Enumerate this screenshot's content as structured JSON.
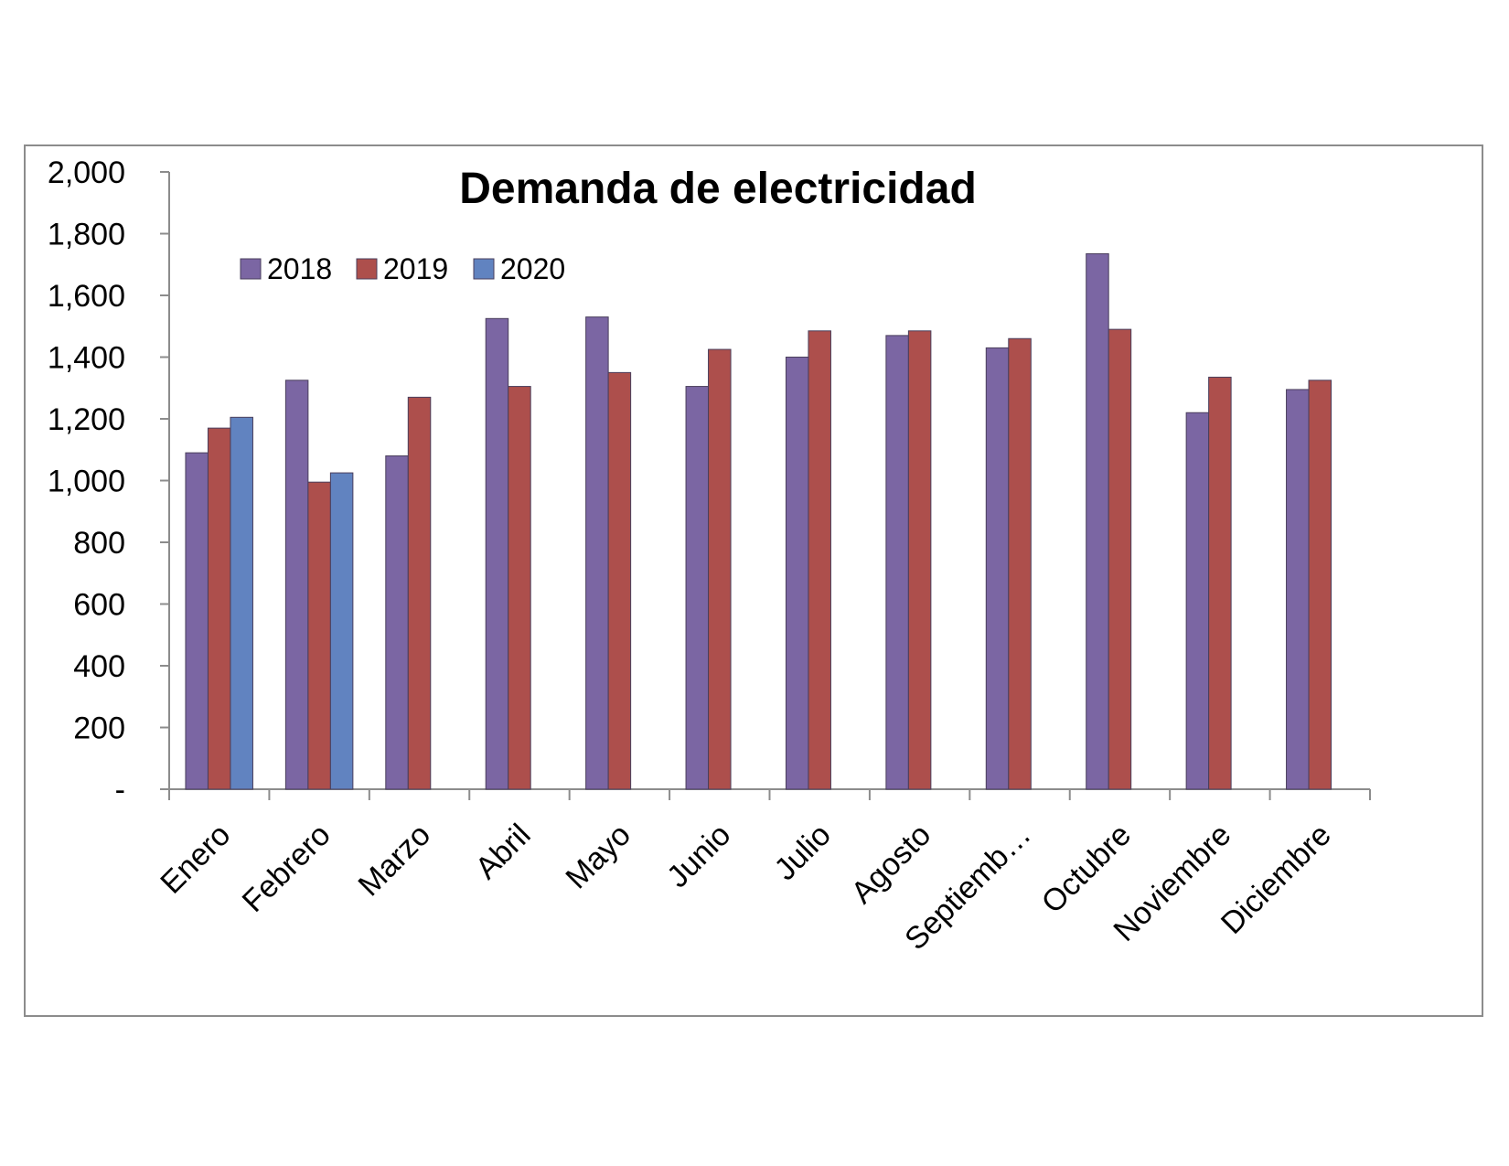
{
  "chart_data": {
    "type": "bar",
    "title": "Demanda de electricidad",
    "xlabel": "",
    "ylabel": "",
    "ylim": [
      0,
      2000
    ],
    "yticks": [
      0,
      200,
      400,
      600,
      800,
      1000,
      1200,
      1400,
      1600,
      1800,
      2000
    ],
    "ytick_labels": [
      "-",
      "200",
      "400",
      "600",
      "800",
      "1,000",
      "1,200",
      "1,400",
      "1,600",
      "1,800",
      "2,000"
    ],
    "categories": [
      "Enero",
      "Febrero",
      "Marzo",
      "Abril",
      "Mayo",
      "Junio",
      "Julio",
      "Agosto",
      "Septiemb…",
      "Octubre",
      "Noviembre",
      "Diciembre"
    ],
    "grid": false,
    "legend_position": "top-left",
    "series": [
      {
        "name": "2018",
        "color": "#7b66a3",
        "values": [
          1090,
          1325,
          1080,
          1525,
          1530,
          1305,
          1400,
          1470,
          1430,
          1735,
          1220,
          1295
        ]
      },
      {
        "name": "2019",
        "color": "#ad4f4c",
        "values": [
          1170,
          995,
          1270,
          1305,
          1350,
          1425,
          1485,
          1485,
          1460,
          1490,
          1335,
          1325
        ]
      },
      {
        "name": "2020",
        "color": "#6183c0",
        "values": [
          1205,
          1025,
          null,
          null,
          null,
          null,
          null,
          null,
          null,
          null,
          null,
          null
        ]
      }
    ]
  }
}
